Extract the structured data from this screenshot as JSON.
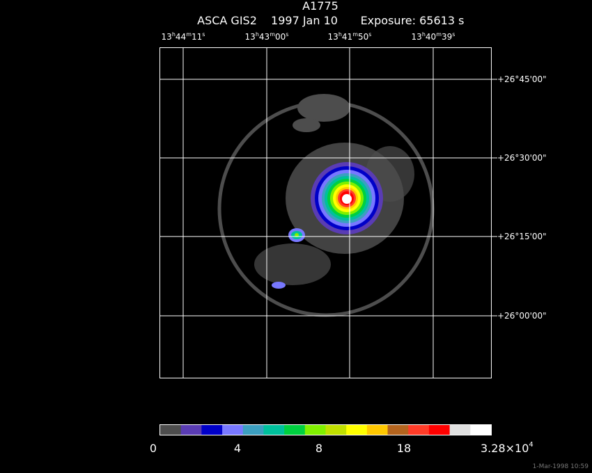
{
  "header": {
    "title": "A1775",
    "subtitle": [
      "ASCA GIS2",
      "1997 Jan 10",
      "Exposure: 65613 s"
    ]
  },
  "ra_labels": [
    [
      "13",
      "h",
      "44",
      "m",
      "11",
      "s"
    ],
    [
      "13",
      "h",
      "43",
      "m",
      "00",
      "s"
    ],
    [
      "13",
      "h",
      "41",
      "m",
      "50",
      "s"
    ],
    [
      "13",
      "h",
      "40",
      "m",
      "39",
      "s"
    ]
  ],
  "dec_labels": [
    "+26°45'00\"",
    "+26°30'00\"",
    "+26°15'00\"",
    "+26°00'00\""
  ],
  "colorbar": {
    "colors": [
      "#4d4d4d",
      "#5a3cb4",
      "#0000c8",
      "#7878ff",
      "#3c9fc0",
      "#00c09c",
      "#00d040",
      "#80f000",
      "#c0e000",
      "#ffff00",
      "#ffc800",
      "#b4641e",
      "#ff3c28",
      "#ff0000",
      "#e0e0e0",
      "#ffffff"
    ],
    "labels": [
      "0",
      "4",
      "8",
      "18"
    ],
    "max_label": [
      "3.28×10",
      "4"
    ]
  },
  "footer": "1-Mar-1998 10:59"
}
